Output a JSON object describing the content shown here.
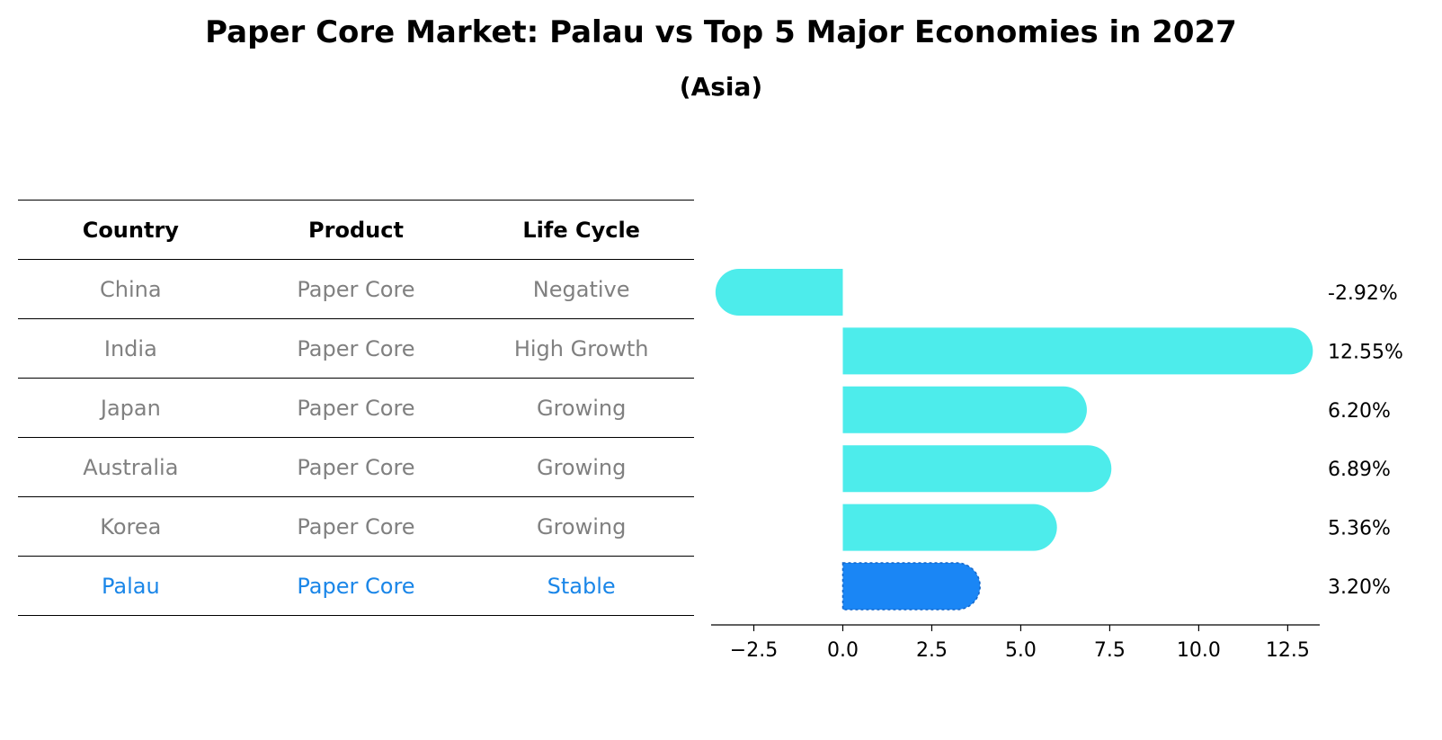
{
  "title": "Paper Core Market: Palau vs Top 5 Major Economies in 2027",
  "subtitle": "(Asia)",
  "table": {
    "headers": [
      "Country",
      "Product",
      "Life Cycle"
    ],
    "rows": [
      {
        "country": "China",
        "product": "Paper Core",
        "life_cycle": "Negative",
        "highlight": false
      },
      {
        "country": "India",
        "product": "Paper Core",
        "life_cycle": "High Growth",
        "highlight": false
      },
      {
        "country": "Japan",
        "product": "Paper Core",
        "life_cycle": "Growing",
        "highlight": false
      },
      {
        "country": "Australia",
        "product": "Paper Core",
        "life_cycle": "Growing",
        "highlight": false
      },
      {
        "country": "Korea",
        "product": "Paper Core",
        "life_cycle": "Growing",
        "highlight": false
      },
      {
        "country": "Palau",
        "product": "Paper Core",
        "life_cycle": "Stable",
        "highlight": true
      }
    ]
  },
  "chart_data": {
    "type": "bar",
    "orientation": "horizontal",
    "categories": [
      "China",
      "India",
      "Japan",
      "Australia",
      "Korea",
      "Palau"
    ],
    "values": [
      -2.92,
      12.55,
      6.2,
      6.89,
      5.36,
      3.2
    ],
    "value_labels": [
      "-2.92%",
      "12.55%",
      "6.20%",
      "6.89%",
      "5.36%",
      "3.20%"
    ],
    "highlight_index": 5,
    "xlim": [
      -3.7,
      13.4
    ],
    "xticks": [
      -2.5,
      0.0,
      2.5,
      5.0,
      7.5,
      10.0,
      12.5
    ],
    "xtick_labels": [
      "−2.5",
      "0.0",
      "2.5",
      "5.0",
      "7.5",
      "10.0",
      "12.5"
    ],
    "colors": {
      "default": "#4deceb",
      "highlight": "#1a86f5"
    }
  }
}
